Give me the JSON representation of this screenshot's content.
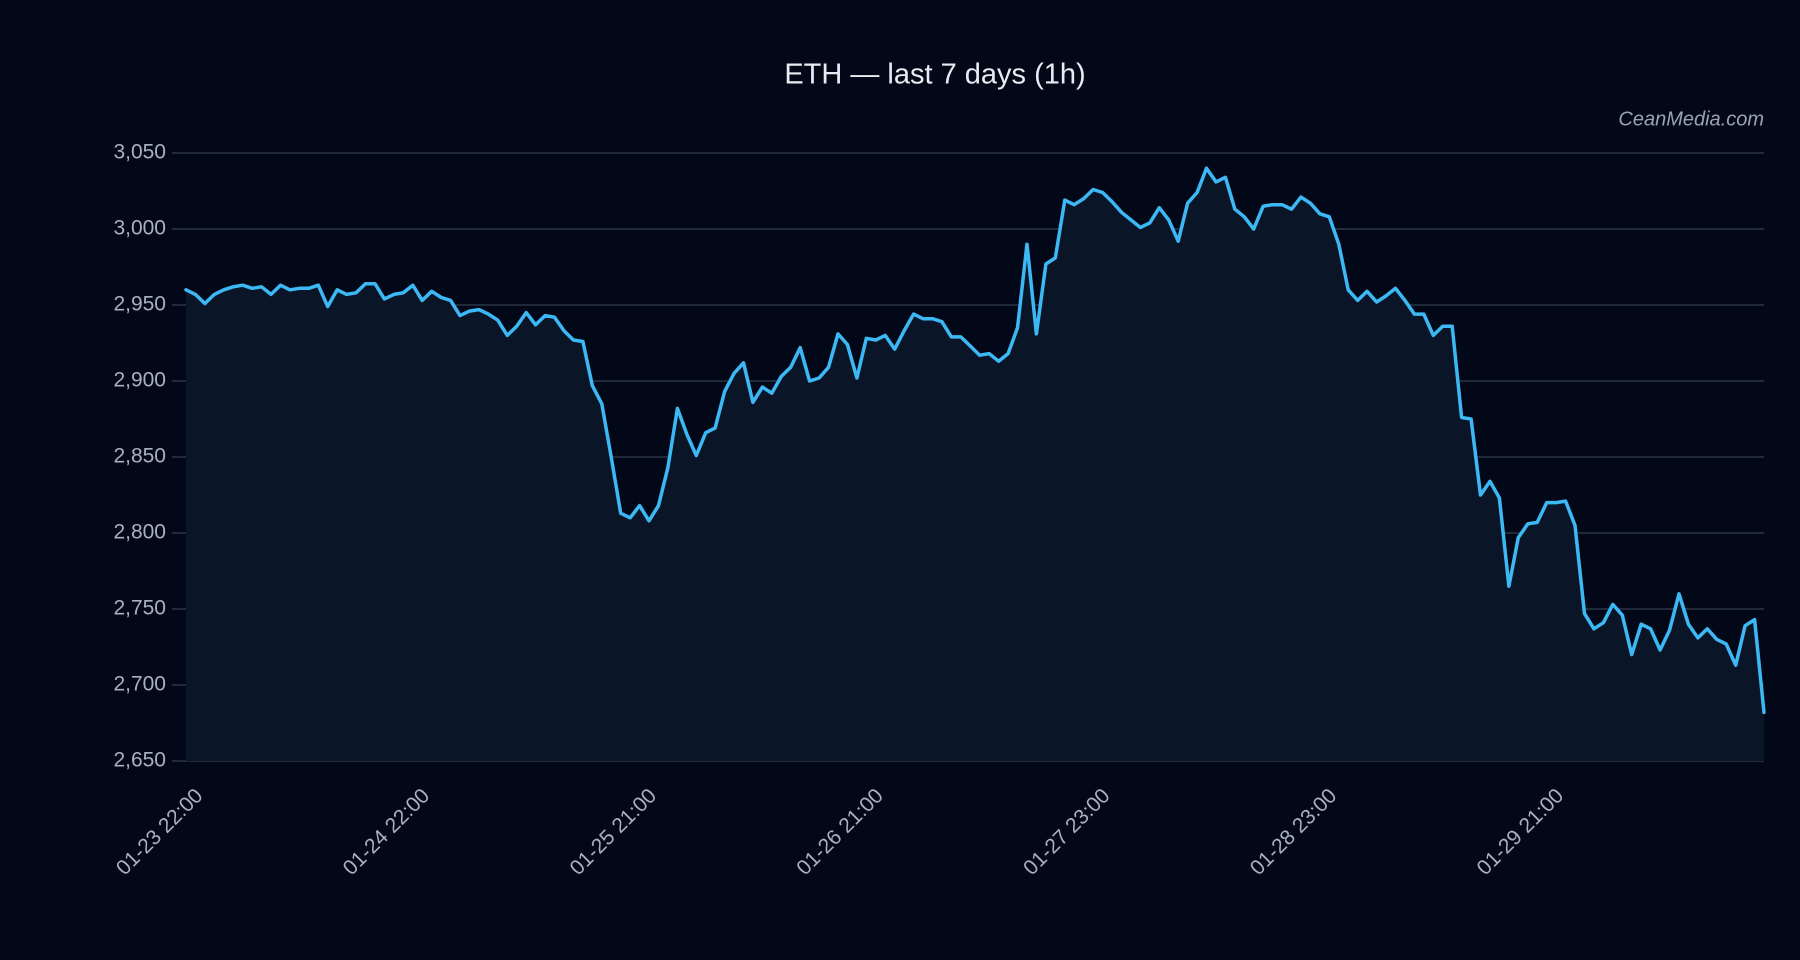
{
  "chart_data": {
    "type": "line",
    "title": "ETH — last 7 days (1h)",
    "watermark": "CeanMedia.com",
    "categories": [
      "01-23 22:00",
      null,
      null,
      null,
      null,
      null,
      null,
      null,
      null,
      null,
      null,
      null,
      null,
      null,
      null,
      null,
      null,
      null,
      null,
      null,
      null,
      null,
      null,
      null,
      "01-24 22:00",
      null,
      null,
      null,
      null,
      null,
      null,
      null,
      null,
      null,
      null,
      null,
      null,
      null,
      null,
      null,
      null,
      null,
      null,
      null,
      null,
      null,
      null,
      null,
      "01-25 21:00",
      null,
      null,
      null,
      null,
      null,
      null,
      null,
      null,
      null,
      null,
      null,
      null,
      null,
      null,
      null,
      null,
      null,
      null,
      null,
      null,
      null,
      null,
      null,
      "01-26 21:00",
      null,
      null,
      null,
      null,
      null,
      null,
      null,
      null,
      null,
      null,
      null,
      null,
      null,
      null,
      null,
      null,
      null,
      null,
      null,
      null,
      null,
      null,
      null,
      "01-27 23:00",
      null,
      null,
      null,
      null,
      null,
      null,
      null,
      null,
      null,
      null,
      null,
      null,
      null,
      null,
      null,
      null,
      null,
      null,
      null,
      null,
      null,
      null,
      null,
      "01-28 23:00",
      null,
      null,
      null,
      null,
      null,
      null,
      null,
      null,
      null,
      null,
      null,
      null,
      null,
      null,
      null,
      null,
      null,
      null,
      null,
      null,
      null,
      null,
      null,
      "01-29 21:00",
      null,
      null,
      null,
      null,
      null,
      null,
      null,
      null,
      null,
      null,
      null,
      null,
      null,
      null,
      null,
      null,
      null,
      null,
      null,
      null,
      null,
      null,
      null
    ],
    "series": [
      {
        "color": "#3cb8f4",
        "values": [
          2960,
          2957,
          2951,
          2957,
          2960,
          2962,
          2963,
          2961,
          2962,
          2957,
          2963,
          2960,
          2961,
          2961,
          2963,
          2949,
          2960,
          2957,
          2958,
          2964,
          2964,
          2954,
          2957,
          2958,
          2963,
          2953,
          2959,
          2955,
          2953,
          2943,
          2946,
          2947,
          2944,
          2940,
          2930,
          2936,
          2945,
          2937,
          2943,
          2942,
          2933,
          2927,
          2926,
          2897,
          2885,
          2850,
          2813,
          2810,
          2818,
          2808,
          2818,
          2843,
          2882,
          2865,
          2851,
          2866,
          2869,
          2893,
          2905,
          2912,
          2886,
          2896,
          2892,
          2903,
          2909,
          2922,
          2900,
          2902,
          2909,
          2931,
          2924,
          2902,
          2928,
          2927,
          2930,
          2921,
          2933,
          2944,
          2941,
          2941,
          2939,
          2929,
          2929,
          2923,
          2917,
          2918,
          2913,
          2918,
          2935,
          2990,
          2931,
          2977,
          2981,
          3019,
          3016,
          3020,
          3026,
          3024,
          3018,
          3011,
          3006,
          3001,
          3004,
          3014,
          3006,
          2992,
          3017,
          3024,
          3040,
          3031,
          3034,
          3013,
          3008,
          3000,
          3015,
          3016,
          3016,
          3013,
          3021,
          3017,
          3010,
          3008,
          2990,
          2960,
          2953,
          2959,
          2952,
          2956,
          2961,
          2953,
          2944,
          2944,
          2930,
          2936,
          2936,
          2876,
          2875,
          2825,
          2834,
          2823,
          2765,
          2797,
          2806,
          2807,
          2820,
          2820,
          2821,
          2805,
          2747,
          2737,
          2741,
          2753,
          2746,
          2720,
          2740,
          2737,
          2723,
          2736,
          2760,
          2740,
          2731,
          2737,
          2730,
          2727,
          2713,
          2739,
          2743,
          2682
        ]
      }
    ],
    "fill": "#0a1628",
    "ylim": [
      2650,
      3050
    ],
    "yticks": [
      {
        "value": 2650,
        "label": "2,650"
      },
      {
        "value": 2700,
        "label": "2,700"
      },
      {
        "value": 2750,
        "label": "2,750"
      },
      {
        "value": 2800,
        "label": "2,800"
      },
      {
        "value": 2850,
        "label": "2,850"
      },
      {
        "value": 2900,
        "label": "2,900"
      },
      {
        "value": 2950,
        "label": "2,950"
      },
      {
        "value": 3000,
        "label": "3,000"
      },
      {
        "value": 3050,
        "label": "3,050"
      }
    ],
    "grid": true
  }
}
